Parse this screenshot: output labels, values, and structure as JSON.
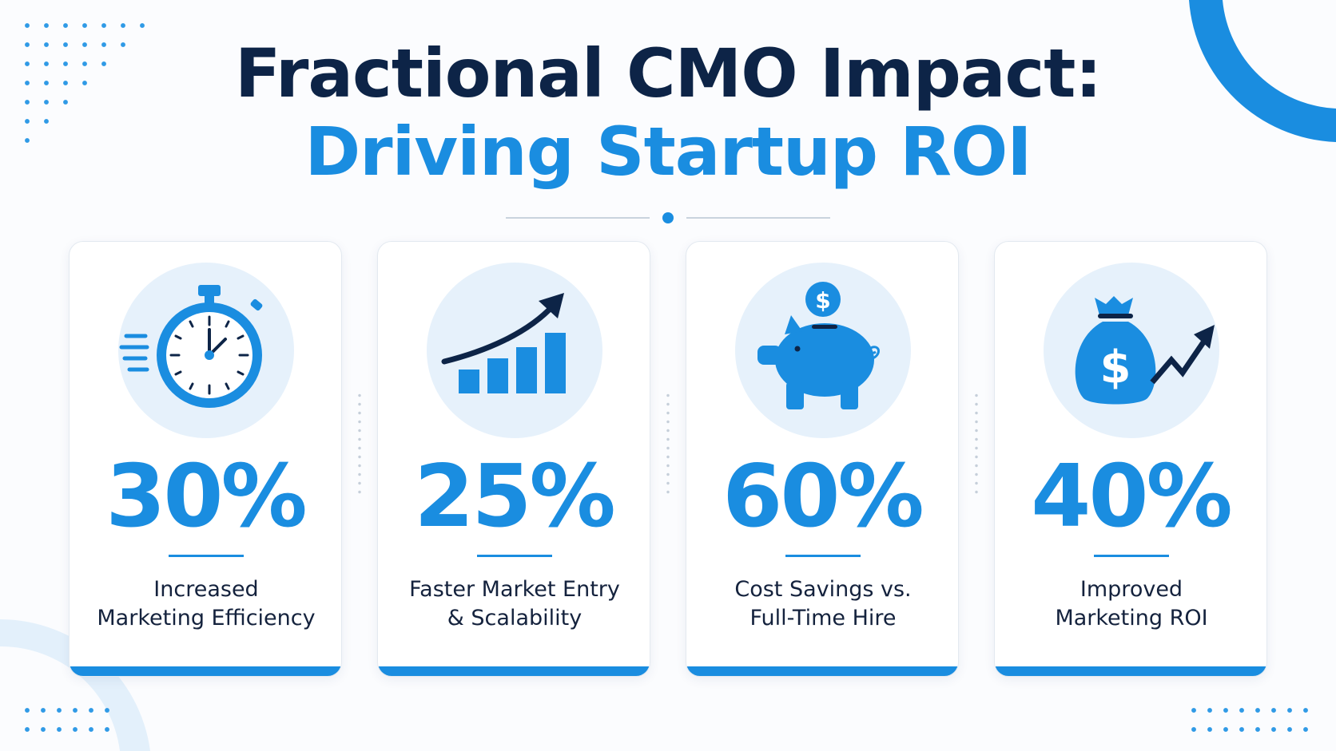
{
  "header": {
    "title_line1": "Fractional CMO Impact:",
    "title_line2": "Driving Startup ROI"
  },
  "colors": {
    "primary_blue": "#1a8de0",
    "navy": "#0d2447",
    "icon_background": "#e6f1fb"
  },
  "cards": [
    {
      "icon": "stopwatch-icon",
      "stat": "30%",
      "label_line1": "Increased",
      "label_line2": "Marketing Efficiency"
    },
    {
      "icon": "growth-chart-icon",
      "stat": "25%",
      "label_line1": "Faster Market Entry",
      "label_line2": "& Scalability"
    },
    {
      "icon": "piggy-bank-icon",
      "stat": "60%",
      "label_line1": "Cost Savings vs.",
      "label_line2": "Full-Time Hire"
    },
    {
      "icon": "money-bag-icon",
      "stat": "40%",
      "label_line1": "Improved",
      "label_line2": "Marketing ROI"
    }
  ]
}
